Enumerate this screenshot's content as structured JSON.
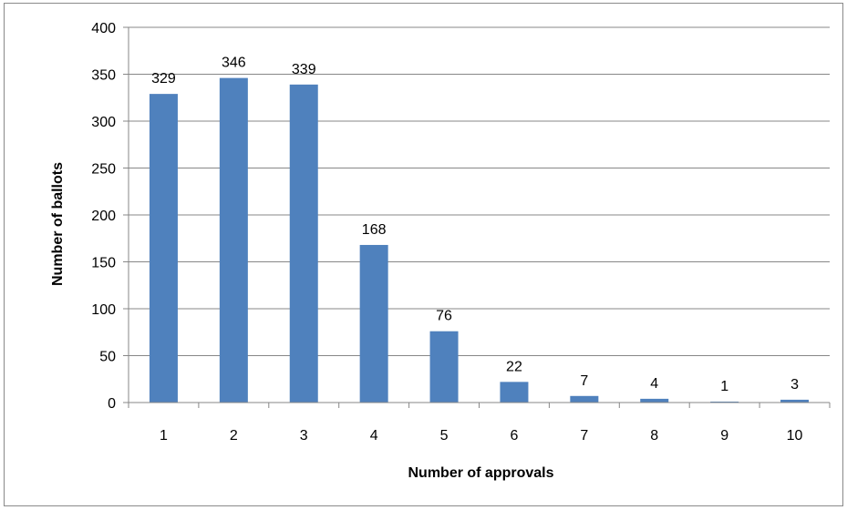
{
  "chart_data": {
    "type": "bar",
    "title": "",
    "xlabel": "Number of approvals",
    "ylabel": "Number of ballots",
    "categories": [
      "1",
      "2",
      "3",
      "4",
      "5",
      "6",
      "7",
      "8",
      "9",
      "10"
    ],
    "values": [
      329,
      346,
      339,
      168,
      76,
      22,
      7,
      4,
      1,
      3
    ],
    "ylim": [
      0,
      400
    ],
    "yticks": [
      0,
      50,
      100,
      150,
      200,
      250,
      300,
      350,
      400
    ],
    "grid": true,
    "legend": "none",
    "colors": {
      "bar": "#4f81bd",
      "grid": "#878787",
      "axis": "#878787"
    }
  }
}
